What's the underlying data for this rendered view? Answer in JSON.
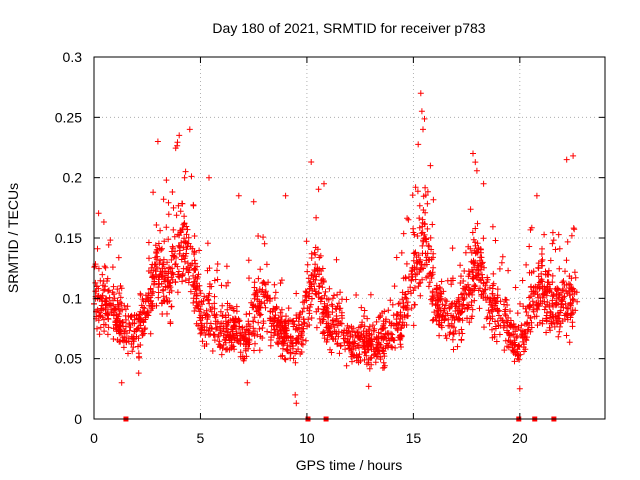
{
  "chart_data": {
    "type": "scatter",
    "title": "Day 180 of 2021, SRMTID for receiver p783",
    "xlabel": "GPS time / hours",
    "ylabel": "SRMTID / TECUs",
    "xlim": [
      0,
      24
    ],
    "ylim": [
      0,
      0.3
    ],
    "x_ticks": [
      0,
      5,
      10,
      15,
      20
    ],
    "x_tick_labels": [
      "0",
      "5",
      "10",
      "15",
      "20"
    ],
    "y_ticks": [
      0,
      0.05,
      0.1,
      0.15,
      0.2,
      0.25,
      0.3
    ],
    "y_tick_labels": [
      "0",
      "0.05",
      "0.1",
      "0.15",
      "0.2",
      "0.25",
      "0.3"
    ],
    "grid": true,
    "marker": "+",
    "color": "#ff0000",
    "x_range": [
      0,
      22.7
    ],
    "baseline_markers_hours": [
      1.5,
      10.05,
      10.9,
      19.95,
      20.7,
      21.6
    ],
    "envelope": [
      {
        "x": 0.0,
        "y": 0.105
      },
      {
        "x": 0.5,
        "y": 0.095
      },
      {
        "x": 1.0,
        "y": 0.085
      },
      {
        "x": 1.5,
        "y": 0.072
      },
      {
        "x": 2.0,
        "y": 0.07
      },
      {
        "x": 2.5,
        "y": 0.09
      },
      {
        "x": 3.0,
        "y": 0.125
      },
      {
        "x": 3.5,
        "y": 0.11
      },
      {
        "x": 4.0,
        "y": 0.15
      },
      {
        "x": 4.5,
        "y": 0.14
      },
      {
        "x": 5.0,
        "y": 0.085
      },
      {
        "x": 5.5,
        "y": 0.085
      },
      {
        "x": 6.0,
        "y": 0.07
      },
      {
        "x": 6.5,
        "y": 0.075
      },
      {
        "x": 7.0,
        "y": 0.065
      },
      {
        "x": 7.5,
        "y": 0.085
      },
      {
        "x": 8.0,
        "y": 0.1
      },
      {
        "x": 8.5,
        "y": 0.08
      },
      {
        "x": 9.0,
        "y": 0.07
      },
      {
        "x": 9.5,
        "y": 0.065
      },
      {
        "x": 10.0,
        "y": 0.1
      },
      {
        "x": 10.5,
        "y": 0.12
      },
      {
        "x": 11.0,
        "y": 0.075
      },
      {
        "x": 11.5,
        "y": 0.08
      },
      {
        "x": 12.0,
        "y": 0.065
      },
      {
        "x": 12.5,
        "y": 0.06
      },
      {
        "x": 13.0,
        "y": 0.06
      },
      {
        "x": 13.5,
        "y": 0.065
      },
      {
        "x": 14.0,
        "y": 0.07
      },
      {
        "x": 14.5,
        "y": 0.085
      },
      {
        "x": 15.0,
        "y": 0.12
      },
      {
        "x": 15.5,
        "y": 0.16
      },
      {
        "x": 16.0,
        "y": 0.1
      },
      {
        "x": 16.5,
        "y": 0.085
      },
      {
        "x": 17.0,
        "y": 0.08
      },
      {
        "x": 17.5,
        "y": 0.1
      },
      {
        "x": 18.0,
        "y": 0.13
      },
      {
        "x": 18.5,
        "y": 0.1
      },
      {
        "x": 19.0,
        "y": 0.085
      },
      {
        "x": 19.5,
        "y": 0.075
      },
      {
        "x": 20.0,
        "y": 0.06
      },
      {
        "x": 20.5,
        "y": 0.09
      },
      {
        "x": 21.0,
        "y": 0.11
      },
      {
        "x": 21.5,
        "y": 0.095
      },
      {
        "x": 22.0,
        "y": 0.09
      },
      {
        "x": 22.5,
        "y": 0.095
      },
      {
        "x": 22.7,
        "y": 0.09
      }
    ],
    "outliers": [
      {
        "x": 15.35,
        "y": 0.27
      },
      {
        "x": 15.4,
        "y": 0.255
      },
      {
        "x": 15.45,
        "y": 0.24
      },
      {
        "x": 4.5,
        "y": 0.24
      },
      {
        "x": 4.0,
        "y": 0.235
      },
      {
        "x": 3.0,
        "y": 0.23
      },
      {
        "x": 17.8,
        "y": 0.22
      },
      {
        "x": 22.5,
        "y": 0.218
      },
      {
        "x": 22.2,
        "y": 0.215
      },
      {
        "x": 10.2,
        "y": 0.213
      },
      {
        "x": 15.8,
        "y": 0.21
      },
      {
        "x": 4.3,
        "y": 0.205
      },
      {
        "x": 5.4,
        "y": 0.2
      },
      {
        "x": 3.4,
        "y": 0.198
      },
      {
        "x": 10.8,
        "y": 0.195
      },
      {
        "x": 18.3,
        "y": 0.195
      },
      {
        "x": 7.5,
        "y": 0.18
      },
      {
        "x": 9.0,
        "y": 0.185
      },
      {
        "x": 6.8,
        "y": 0.185
      },
      {
        "x": 20.8,
        "y": 0.185
      },
      {
        "x": 9.5,
        "y": 0.013
      },
      {
        "x": 9.45,
        "y": 0.02
      },
      {
        "x": 20.0,
        "y": 0.025
      },
      {
        "x": 1.3,
        "y": 0.03
      },
      {
        "x": 12.9,
        "y": 0.027
      },
      {
        "x": 7.2,
        "y": 0.03
      },
      {
        "x": 2.1,
        "y": 0.038
      }
    ]
  }
}
